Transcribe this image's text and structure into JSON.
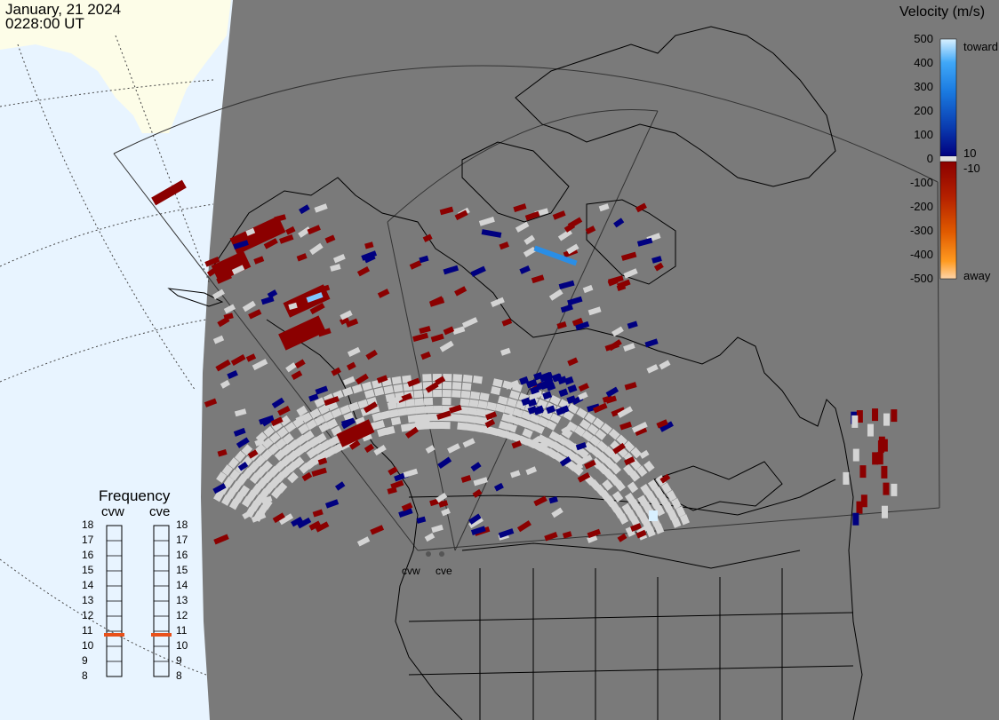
{
  "header": {
    "date": "January, 21 2024",
    "time": "0228:00 UT"
  },
  "legend": {
    "title": "Velocity (m/s)",
    "ticks": [
      {
        "value": 500,
        "label": "500"
      },
      {
        "value": 400,
        "label": "400"
      },
      {
        "value": 300,
        "label": "300"
      },
      {
        "value": 200,
        "label": "200"
      },
      {
        "value": 100,
        "label": "100"
      },
      {
        "value": 0,
        "label": "0"
      },
      {
        "value": -100,
        "label": "-100"
      },
      {
        "value": -200,
        "label": "-200"
      },
      {
        "value": -300,
        "label": "-300"
      },
      {
        "value": -400,
        "label": "-400"
      },
      {
        "value": -500,
        "label": "-500"
      }
    ],
    "toward_label": "toward",
    "away_label": "away",
    "pos_threshold_label": "10",
    "neg_threshold_label": "-10",
    "colors": {
      "toward_light": "#d8f0ff",
      "toward_mid": "#2a8ee6",
      "toward_dark": "#0a2a9a",
      "near_zero": "#000080",
      "ground_scatter": "#d4d4d4",
      "away_dark": "#8b0000",
      "away_mid": "#d94a00",
      "away_light": "#ffcc99"
    }
  },
  "frequency_panel": {
    "title": "Frequency",
    "radars": [
      {
        "name": "cvw",
        "frequency_mhz": 11
      },
      {
        "name": "cve",
        "frequency_mhz": 11
      }
    ],
    "scale": [
      "18",
      "17",
      "16",
      "15",
      "14",
      "13",
      "12",
      "11",
      "10",
      "9",
      "8"
    ],
    "marker_color": "#e8501a"
  },
  "map": {
    "radar_site_labels": [
      "cvw",
      "cve"
    ],
    "colors": {
      "night_shade": "#7a7a7a",
      "day_land": "#fdfde8",
      "ocean": "#e8f4ff",
      "coastline": "#000000",
      "grid_line": "#555555"
    }
  }
}
